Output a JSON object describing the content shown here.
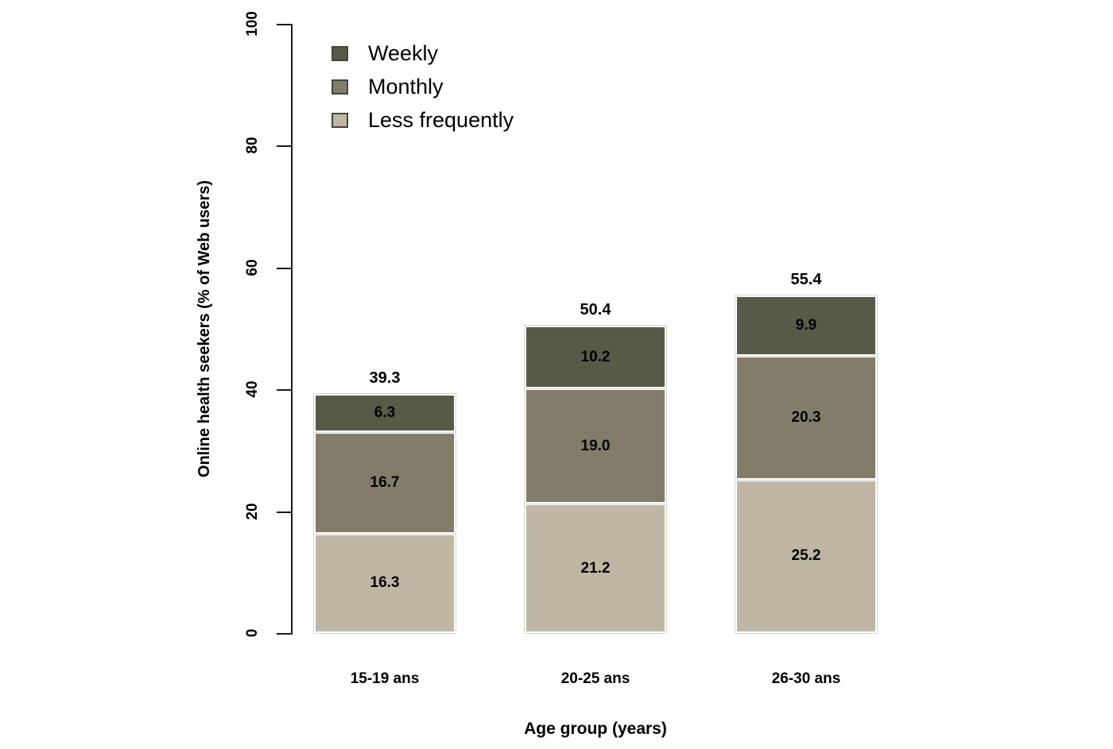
{
  "chart_data": {
    "type": "bar",
    "stacked": true,
    "title": "",
    "xlabel": "Age group (years)",
    "ylabel": "Online health seekers (% of Web users)",
    "categories": [
      "15-19 ans",
      "20-25 ans",
      "26-30 ans"
    ],
    "series": [
      {
        "name": "Less frequently",
        "color": "#bfb6a4",
        "values": [
          16.3,
          21.2,
          25.2
        ]
      },
      {
        "name": "Monthly",
        "color": "#847c6b",
        "values": [
          16.7,
          19.0,
          20.3
        ]
      },
      {
        "name": "Weekly",
        "color": "#575a47",
        "values": [
          6.3,
          10.2,
          9.9
        ]
      }
    ],
    "totals": [
      39.3,
      50.4,
      55.4
    ],
    "ylim": [
      0,
      100
    ],
    "yticks": [
      0,
      20,
      40,
      60,
      80,
      100
    ],
    "grid": false,
    "legend": {
      "position": "top-left",
      "order": [
        "Weekly",
        "Monthly",
        "Less frequently"
      ]
    }
  },
  "colors": {
    "axis": "#1a1a1a",
    "background": "#ffffff",
    "segment_border": "#ffffff",
    "text": "#000000"
  }
}
